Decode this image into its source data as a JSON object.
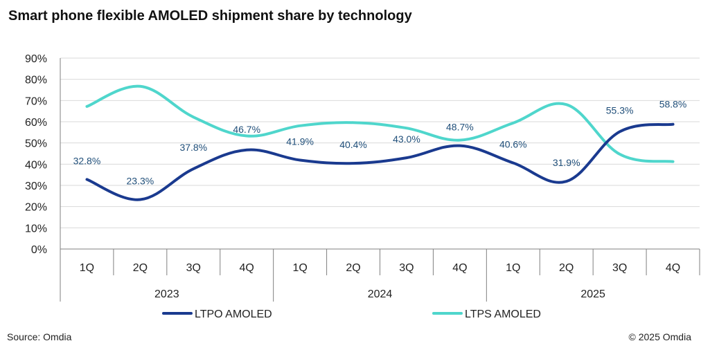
{
  "header": {
    "title": "Smart phone flexible AMOLED shipment share by technology"
  },
  "footer": {
    "source": "Source: Omdia",
    "copyright": "© 2025 Omdia"
  },
  "colors": {
    "ltpo": "#1a3a8f",
    "ltps": "#4fd6cc",
    "grid": "#d9d9d9",
    "axis": "#7f7f7f",
    "data_label": "#1f4e79"
  },
  "chart_data": {
    "type": "line",
    "title": "Smart phone flexible AMOLED shipment share by technology",
    "categories": [
      "1Q",
      "2Q",
      "3Q",
      "4Q",
      "1Q",
      "2Q",
      "3Q",
      "4Q",
      "1Q",
      "2Q",
      "3Q",
      "4Q"
    ],
    "groups": [
      {
        "label": "2023",
        "count": 4
      },
      {
        "label": "2024",
        "count": 4
      },
      {
        "label": "2025",
        "count": 4
      }
    ],
    "yticks": [
      "90%",
      "80%",
      "70%",
      "60%",
      "50%",
      "40%",
      "30%",
      "20%",
      "10%",
      "0%"
    ],
    "ylim": [
      0,
      90
    ],
    "grid": true,
    "legend_position": "bottom",
    "series": [
      {
        "name": "LTPO AMOLED",
        "values": [
          32.8,
          23.3,
          37.8,
          46.7,
          41.9,
          40.4,
          43.0,
          48.7,
          40.6,
          31.9,
          55.3,
          58.8
        ],
        "labels": [
          "32.8%",
          "23.3%",
          "37.8%",
          "46.7%",
          "41.9%",
          "40.4%",
          "43.0%",
          "48.7%",
          "40.6%",
          "31.9%",
          "55.3%",
          "58.8%"
        ]
      },
      {
        "name": "LTPS AMOLED",
        "values": [
          67.2,
          76.7,
          62.2,
          53.3,
          58.1,
          59.6,
          57.0,
          51.3,
          59.4,
          68.1,
          44.7,
          41.2
        ]
      }
    ]
  }
}
